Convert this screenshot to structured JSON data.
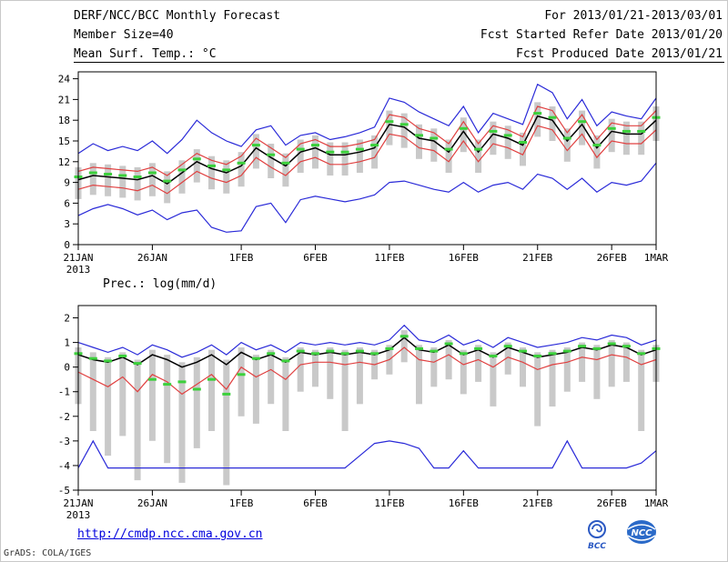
{
  "header": {
    "title": "DERF/NCC/BCC Monthly Forecast",
    "member_size": "Member Size=40",
    "for_range": "For 2013/01/21-2013/03/01",
    "fcst_started": "Fcst Started Refer Date 2013/01/20",
    "fcst_produced": "Fcst Produced Date 2013/01/21"
  },
  "footer": {
    "url": "http://cmdp.ncc.cma.gov.cn",
    "credit": "GrADS: COLA/IGES",
    "bcc_label": "BCC",
    "ncc_label": "NCC"
  },
  "chart_data": [
    {
      "id": "temp",
      "type": "line",
      "title": "Mean Surf. Temp.: °C",
      "x_year": "2013",
      "n_days": 40,
      "ylim": [
        0,
        25
      ],
      "yticks": [
        0,
        3,
        6,
        9,
        12,
        15,
        18,
        21,
        24
      ],
      "grid": false,
      "x_ticks": [
        {
          "label": "21JAN",
          "day": 0
        },
        {
          "label": "26JAN",
          "day": 5
        },
        {
          "label": "1FEB",
          "day": 11
        },
        {
          "label": "6FEB",
          "day": 16
        },
        {
          "label": "11FEB",
          "day": 21
        },
        {
          "label": "16FEB",
          "day": 26
        },
        {
          "label": "21FEB",
          "day": 31
        },
        {
          "label": "26FEB",
          "day": 36
        },
        {
          "label": "1MAR",
          "day": 39
        }
      ],
      "bars": {
        "name": "ensemble-spread",
        "color": "#c9c9c9",
        "lower": [
          6.6,
          7.2,
          7.0,
          6.8,
          6.4,
          7.0,
          6.0,
          7.4,
          9.0,
          8.0,
          7.4,
          8.4,
          11.0,
          9.6,
          8.4,
          10.4,
          11.0,
          10.0,
          10.0,
          10.4,
          11.0,
          14.4,
          14.0,
          12.4,
          12.0,
          10.4,
          13.4,
          10.4,
          13.0,
          12.4,
          11.4,
          15.6,
          15.0,
          12.0,
          14.4,
          11.0,
          13.4,
          13.0,
          13.0,
          15.0
        ],
        "upper": [
          11.2,
          11.8,
          11.6,
          11.4,
          11.2,
          11.8,
          10.6,
          12.2,
          13.8,
          12.8,
          12.2,
          13.4,
          16.0,
          14.6,
          13.2,
          15.2,
          15.8,
          14.8,
          14.8,
          15.2,
          15.8,
          19.4,
          19.0,
          17.4,
          16.8,
          15.2,
          18.4,
          15.2,
          17.8,
          17.2,
          16.2,
          20.6,
          20.0,
          16.8,
          19.4,
          15.8,
          18.2,
          17.8,
          17.8,
          20.0
        ]
      },
      "mean_markers": {
        "name": "ensemble-mean",
        "color": "#3cd03c",
        "values": [
          9.8,
          10.4,
          10.2,
          10.0,
          9.8,
          10.4,
          9.2,
          10.8,
          12.4,
          11.4,
          10.8,
          11.8,
          14.4,
          13.0,
          11.8,
          13.8,
          14.4,
          13.4,
          13.4,
          13.8,
          14.4,
          17.8,
          17.4,
          15.8,
          15.4,
          13.8,
          16.8,
          13.8,
          16.4,
          15.8,
          14.8,
          19.0,
          18.4,
          15.4,
          17.8,
          14.4,
          16.8,
          16.4,
          16.4,
          18.4
        ]
      },
      "series": [
        {
          "name": "max",
          "color": "#2a2ad8",
          "values": [
            13.2,
            14.6,
            13.6,
            14.2,
            13.6,
            15.0,
            13.2,
            15.2,
            18.0,
            16.2,
            15.0,
            14.2,
            16.6,
            17.2,
            14.4,
            15.8,
            16.2,
            15.2,
            15.6,
            16.2,
            17.0,
            21.2,
            20.6,
            19.2,
            18.2,
            17.2,
            20.0,
            16.2,
            19.0,
            18.2,
            17.4,
            23.2,
            22.0,
            18.2,
            21.0,
            17.2,
            19.2,
            18.6,
            18.2,
            21.2
          ]
        },
        {
          "name": "upper",
          "color": "#e04040",
          "values": [
            10.6,
            11.2,
            11.0,
            10.8,
            10.6,
            11.2,
            10.0,
            11.6,
            13.2,
            12.2,
            11.6,
            12.8,
            15.4,
            14.0,
            12.6,
            14.6,
            15.2,
            14.2,
            14.2,
            14.6,
            15.2,
            18.8,
            18.4,
            16.8,
            16.2,
            14.6,
            17.8,
            14.6,
            17.2,
            16.6,
            15.6,
            20.0,
            19.4,
            16.2,
            18.8,
            15.2,
            17.6,
            17.2,
            17.2,
            19.4
          ]
        },
        {
          "name": "median",
          "color": "#000000",
          "width": 1.5,
          "values": [
            9.4,
            10.0,
            9.8,
            9.6,
            9.4,
            10.0,
            8.8,
            10.4,
            12.0,
            11.0,
            10.4,
            11.4,
            14.0,
            12.6,
            11.4,
            13.4,
            14.0,
            13.0,
            13.0,
            13.4,
            14.0,
            17.4,
            17.0,
            15.4,
            15.0,
            13.4,
            16.4,
            13.4,
            16.0,
            15.4,
            14.4,
            18.6,
            18.0,
            15.0,
            17.4,
            14.0,
            16.4,
            16.0,
            16.0,
            18.0
          ]
        },
        {
          "name": "lower",
          "color": "#e04040",
          "values": [
            8.0,
            8.6,
            8.4,
            8.2,
            7.8,
            8.6,
            7.4,
            9.0,
            10.6,
            9.6,
            9.0,
            10.0,
            12.6,
            11.2,
            10.0,
            12.0,
            12.6,
            11.6,
            11.6,
            12.0,
            12.6,
            16.0,
            15.6,
            14.0,
            13.6,
            12.0,
            15.0,
            12.0,
            14.6,
            14.0,
            13.0,
            17.2,
            16.6,
            13.6,
            16.0,
            12.6,
            15.0,
            14.6,
            14.6,
            16.6
          ]
        },
        {
          "name": "min",
          "color": "#2a2ad8",
          "values": [
            4.2,
            5.2,
            5.8,
            5.2,
            4.3,
            5.0,
            3.6,
            4.6,
            5.0,
            2.5,
            1.8,
            2.0,
            5.5,
            6.0,
            3.2,
            6.5,
            7.0,
            6.6,
            6.2,
            6.6,
            7.2,
            9.0,
            9.2,
            8.6,
            8.0,
            7.6,
            9.0,
            7.6,
            8.6,
            9.0,
            8.0,
            10.2,
            9.6,
            8.0,
            9.6,
            7.6,
            9.0,
            8.6,
            9.2,
            11.8
          ]
        }
      ]
    },
    {
      "id": "prec",
      "type": "line",
      "title": "Prec.: log(mm/d)",
      "x_year": "2013",
      "n_days": 40,
      "ylim": [
        -5,
        2.5
      ],
      "yticks": [
        -5,
        -4,
        -3,
        -2,
        -1,
        0,
        1,
        2
      ],
      "grid": false,
      "x_ticks": [
        {
          "label": "21JAN",
          "day": 0
        },
        {
          "label": "26JAN",
          "day": 5
        },
        {
          "label": "1FEB",
          "day": 11
        },
        {
          "label": "6FEB",
          "day": 16
        },
        {
          "label": "11FEB",
          "day": 21
        },
        {
          "label": "16FEB",
          "day": 26
        },
        {
          "label": "21FEB",
          "day": 31
        },
        {
          "label": "26FEB",
          "day": 36
        },
        {
          "label": "1MAR",
          "day": 39
        }
      ],
      "bars": {
        "name": "ensemble-spread",
        "color": "#c9c9c9",
        "lower": [
          -1.5,
          -2.6,
          -3.6,
          -2.8,
          -4.6,
          -3.0,
          -3.9,
          -4.7,
          -3.3,
          -2.6,
          -4.8,
          -2.0,
          -2.3,
          -1.5,
          -2.6,
          -1.0,
          -0.8,
          -1.3,
          -2.6,
          -1.5,
          -0.5,
          -0.3,
          0.2,
          -1.5,
          -0.8,
          -0.5,
          -1.1,
          -0.6,
          -1.6,
          -0.3,
          -0.8,
          -2.4,
          -1.6,
          -1.0,
          -0.6,
          -1.3,
          -0.8,
          -0.6,
          -2.6,
          -0.6
        ],
        "upper": [
          0.8,
          0.6,
          0.4,
          0.6,
          0.3,
          0.7,
          0.5,
          0.2,
          0.4,
          0.7,
          0.3,
          0.8,
          0.5,
          0.7,
          0.4,
          0.8,
          0.7,
          0.8,
          0.7,
          0.8,
          0.7,
          0.9,
          1.5,
          0.9,
          0.8,
          1.1,
          0.7,
          0.9,
          0.6,
          1.0,
          0.8,
          0.6,
          0.7,
          0.8,
          1.0,
          0.9,
          1.1,
          1.0,
          0.7,
          0.9
        ]
      },
      "mean_markers": {
        "name": "ensemble-mean",
        "color": "#3cd03c",
        "values": [
          0.55,
          0.35,
          0.25,
          0.45,
          0.15,
          -0.5,
          -0.7,
          -0.6,
          -0.9,
          -0.5,
          -1.1,
          -0.3,
          0.35,
          0.55,
          0.25,
          0.65,
          0.55,
          0.65,
          0.55,
          0.65,
          0.55,
          0.75,
          1.25,
          0.75,
          0.65,
          0.95,
          0.55,
          0.75,
          0.45,
          0.85,
          0.65,
          0.45,
          0.55,
          0.65,
          0.85,
          0.75,
          0.95,
          0.85,
          0.55,
          0.75
        ]
      },
      "series": [
        {
          "name": "max",
          "color": "#2a2ad8",
          "values": [
            1.0,
            0.8,
            0.6,
            0.8,
            0.5,
            0.9,
            0.7,
            0.4,
            0.6,
            0.9,
            0.5,
            1.0,
            0.7,
            0.9,
            0.6,
            1.0,
            0.9,
            1.0,
            0.9,
            1.0,
            0.9,
            1.1,
            1.7,
            1.1,
            1.0,
            1.3,
            0.9,
            1.1,
            0.8,
            1.2,
            1.0,
            0.8,
            0.9,
            1.0,
            1.2,
            1.1,
            1.3,
            1.2,
            0.9,
            1.1
          ]
        },
        {
          "name": "median",
          "color": "#000000",
          "width": 1.5,
          "values": [
            0.5,
            0.3,
            0.2,
            0.4,
            0.1,
            0.5,
            0.3,
            0.0,
            0.2,
            0.5,
            0.1,
            0.6,
            0.3,
            0.5,
            0.2,
            0.6,
            0.5,
            0.6,
            0.5,
            0.6,
            0.5,
            0.7,
            1.2,
            0.7,
            0.6,
            0.9,
            0.5,
            0.7,
            0.4,
            0.8,
            0.6,
            0.4,
            0.5,
            0.6,
            0.8,
            0.7,
            0.9,
            0.8,
            0.5,
            0.7
          ]
        },
        {
          "name": "lower",
          "color": "#e04040",
          "values": [
            -0.2,
            -0.5,
            -0.8,
            -0.4,
            -1.0,
            -0.3,
            -0.6,
            -1.1,
            -0.7,
            -0.3,
            -0.9,
            0.0,
            -0.4,
            -0.1,
            -0.5,
            0.1,
            0.2,
            0.2,
            0.1,
            0.2,
            0.1,
            0.3,
            0.8,
            0.3,
            0.2,
            0.5,
            0.1,
            0.3,
            0.0,
            0.4,
            0.2,
            -0.1,
            0.1,
            0.2,
            0.4,
            0.3,
            0.5,
            0.4,
            0.1,
            0.3
          ]
        },
        {
          "name": "min",
          "color": "#2a2ad8",
          "values": [
            -4.1,
            -3.0,
            -4.1,
            -4.1,
            -4.1,
            -4.1,
            -4.1,
            -4.1,
            -4.1,
            -4.1,
            -4.1,
            -4.1,
            -4.1,
            -4.1,
            -4.1,
            -4.1,
            -4.1,
            -4.1,
            -4.1,
            -3.6,
            -3.1,
            -3.0,
            -3.1,
            -3.3,
            -4.1,
            -4.1,
            -3.4,
            -4.1,
            -4.1,
            -4.1,
            -4.1,
            -4.1,
            -4.1,
            -3.0,
            -4.1,
            -4.1,
            -4.1,
            -4.1,
            -3.9,
            -3.4
          ]
        }
      ]
    }
  ]
}
